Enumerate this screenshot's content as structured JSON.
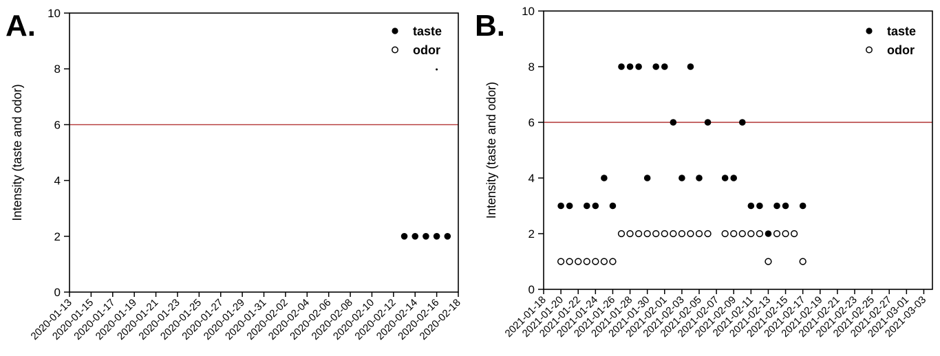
{
  "figure": {
    "background": "#ffffff",
    "frame_color": "#000000",
    "point_color": "#000000",
    "reference_line_color": "#b23535"
  },
  "chart_data": [
    {
      "type": "scatter",
      "panel_label": "A.",
      "ylabel": "Intensity (taste and odor)",
      "ylim": [
        0,
        10
      ],
      "y_ticks": [
        "0",
        "2",
        "4",
        "6",
        "8",
        "10"
      ],
      "x_start": "2020-01-13",
      "x_end": "2020-02-18",
      "x_tick_step_days": 2,
      "x_tick_labels": [
        "2020-01-13",
        "2020-01-15",
        "2020-01-17",
        "2020-01-19",
        "2020-01-21",
        "2020-01-23",
        "2020-01-25",
        "2020-01-27",
        "2020-01-29",
        "2020-01-31",
        "2020-02-02",
        "2020-02-04",
        "2020-02-06",
        "2020-02-08",
        "2020-02-10",
        "2020-02-12",
        "2020-02-14",
        "2020-02-16",
        "2020-02-18"
      ],
      "reference_line_y": 6,
      "grid": false,
      "legend_position": "top-right",
      "legend": [
        {
          "label": "taste",
          "marker": "filled-circle"
        },
        {
          "label": "odor",
          "marker": "open-circle"
        }
      ],
      "series": [
        {
          "name": "taste",
          "marker": "filled-circle",
          "points": [
            [
              "2020-02-13",
              2
            ],
            [
              "2020-02-14",
              2
            ],
            [
              "2020-02-15",
              2
            ],
            [
              "2020-02-16",
              2
            ],
            [
              "2020-02-17",
              2
            ]
          ]
        },
        {
          "name": "odor",
          "marker": "open-circle",
          "points": []
        }
      ],
      "stray_mark": {
        "date": "2020-02-16",
        "value": 7.98
      }
    },
    {
      "type": "scatter",
      "panel_label": "B.",
      "ylabel": "Intensity (taste and odor)",
      "ylim": [
        0,
        10
      ],
      "y_ticks": [
        "0",
        "2",
        "4",
        "6",
        "8",
        "10"
      ],
      "x_start": "2021-01-18",
      "x_end": "2021-03-04",
      "x_tick_step_days": 2,
      "x_tick_labels": [
        "2021-01-18",
        "2021-01-20",
        "2021-01-22",
        "2021-01-24",
        "2021-01-26",
        "2021-01-28",
        "2021-01-30",
        "2021-02-01",
        "2021-02-03",
        "2021-02-05",
        "2021-02-07",
        "2021-02-09",
        "2021-02-11",
        "2021-02-13",
        "2021-02-15",
        "2021-02-17",
        "2021-02-19",
        "2021-02-21",
        "2021-02-23",
        "2021-02-25",
        "2021-02-27",
        "2021-03-01",
        "2021-03-03"
      ],
      "reference_line_y": 6,
      "grid": false,
      "legend_position": "top-right",
      "legend": [
        {
          "label": "taste",
          "marker": "filled-circle"
        },
        {
          "label": "odor",
          "marker": "open-circle"
        }
      ],
      "series": [
        {
          "name": "taste",
          "marker": "filled-circle",
          "points": [
            [
              "2021-01-20",
              3
            ],
            [
              "2021-01-21",
              3
            ],
            [
              "2021-01-23",
              3
            ],
            [
              "2021-01-24",
              3
            ],
            [
              "2021-01-25",
              4
            ],
            [
              "2021-01-26",
              3
            ],
            [
              "2021-01-27",
              8
            ],
            [
              "2021-01-28",
              8
            ],
            [
              "2021-01-29",
              8
            ],
            [
              "2021-01-30",
              4
            ],
            [
              "2021-01-31",
              8
            ],
            [
              "2021-02-01",
              8
            ],
            [
              "2021-02-02",
              6
            ],
            [
              "2021-02-03",
              4
            ],
            [
              "2021-02-04",
              8
            ],
            [
              "2021-02-05",
              4
            ],
            [
              "2021-02-06",
              6
            ],
            [
              "2021-02-08",
              4
            ],
            [
              "2021-02-09",
              4
            ],
            [
              "2021-02-10",
              6
            ],
            [
              "2021-02-11",
              3
            ],
            [
              "2021-02-12",
              3
            ],
            [
              "2021-02-13",
              2
            ],
            [
              "2021-02-14",
              3
            ],
            [
              "2021-02-15",
              3
            ],
            [
              "2021-02-17",
              3
            ]
          ]
        },
        {
          "name": "odor",
          "marker": "open-circle",
          "points": [
            [
              "2021-01-20",
              1
            ],
            [
              "2021-01-21",
              1
            ],
            [
              "2021-01-22",
              1
            ],
            [
              "2021-01-23",
              1
            ],
            [
              "2021-01-24",
              1
            ],
            [
              "2021-01-25",
              1
            ],
            [
              "2021-01-26",
              1
            ],
            [
              "2021-01-27",
              2
            ],
            [
              "2021-01-28",
              2
            ],
            [
              "2021-01-29",
              2
            ],
            [
              "2021-01-30",
              2
            ],
            [
              "2021-01-31",
              2
            ],
            [
              "2021-02-01",
              2
            ],
            [
              "2021-02-02",
              2
            ],
            [
              "2021-02-03",
              2
            ],
            [
              "2021-02-04",
              2
            ],
            [
              "2021-02-05",
              2
            ],
            [
              "2021-02-06",
              2
            ],
            [
              "2021-02-08",
              2
            ],
            [
              "2021-02-09",
              2
            ],
            [
              "2021-02-10",
              2
            ],
            [
              "2021-02-11",
              2
            ],
            [
              "2021-02-12",
              2
            ],
            [
              "2021-02-13",
              1
            ],
            [
              "2021-02-14",
              2
            ],
            [
              "2021-02-15",
              2
            ],
            [
              "2021-02-16",
              2
            ],
            [
              "2021-02-17",
              1
            ]
          ]
        }
      ],
      "stray_mark": null
    }
  ]
}
